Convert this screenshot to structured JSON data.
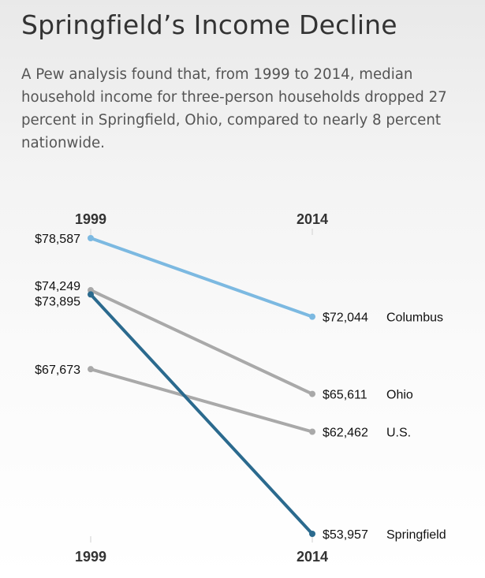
{
  "header": {
    "title": "Springfield’s Income Decline",
    "subtitle": "A Pew analysis found that, from 1999 to 2014, median household income for three-person households dropped 27 percent in Springfield, Ohio, compared to nearly 8 percent nationwide."
  },
  "chart_data": {
    "type": "line",
    "title": "Springfield’s Income Decline",
    "categories": [
      "1999",
      "2014"
    ],
    "series": [
      {
        "name": "Columbus",
        "values": [
          78587,
          72044
        ],
        "start_label": "$78,587",
        "end_label": "$72,044",
        "color": "#7cb9e1"
      },
      {
        "name": "Ohio",
        "values": [
          74249,
          65611
        ],
        "start_label": "$74,249",
        "end_label": "$65,611",
        "color": "#a9a9a9"
      },
      {
        "name": "U.S.",
        "values": [
          67673,
          62462
        ],
        "start_label": "$67,673",
        "end_label": "$62,462",
        "color": "#a9a9a9"
      },
      {
        "name": "Springfield",
        "values": [
          73895,
          53957
        ],
        "start_label": "$73,895",
        "end_label": "$53,957",
        "color": "#2b6a8e"
      }
    ],
    "ylim": [
      53957,
      78587
    ],
    "xlabel": "",
    "ylabel": "",
    "grid": false
  }
}
